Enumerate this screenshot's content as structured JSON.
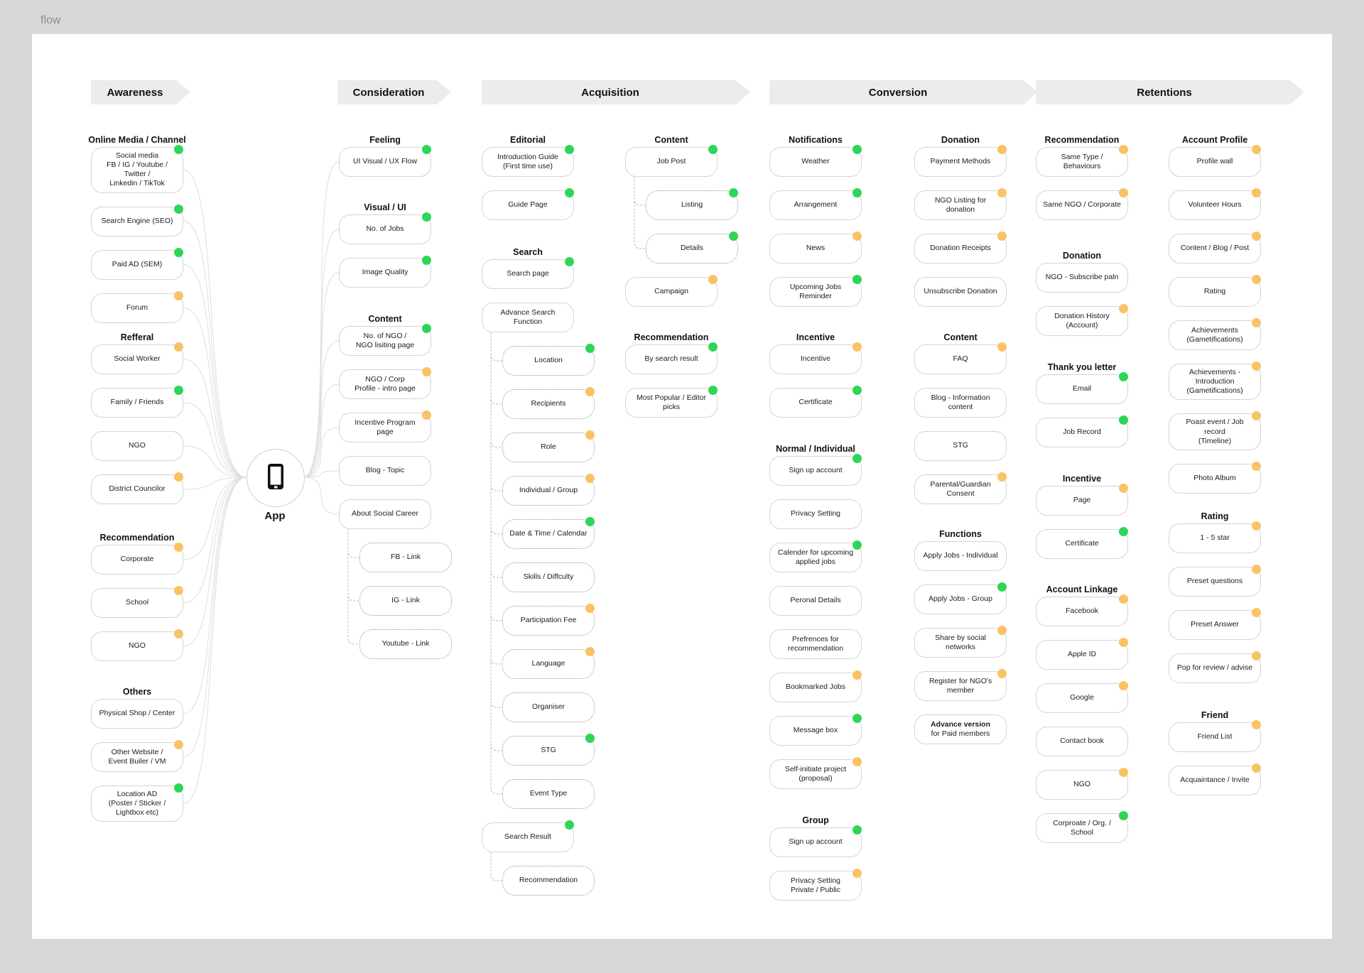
{
  "page_label": "flow",
  "app_node": {
    "label": "App"
  },
  "status_colors": {
    "green": "#2fd656",
    "orange": "#fac262"
  },
  "stages": [
    {
      "id": "awareness",
      "header": "Awareness",
      "columns": [
        {
          "id": "aw",
          "groups": [
            {
              "title": "Online Media / Channel",
              "items": [
                {
                  "label": "Social media\nFB / IG / Youtube / Twitter /\nLinkedin / TikTok",
                  "dot": "green"
                },
                {
                  "label": "Search Engine (SEO)",
                  "dot": "green"
                },
                {
                  "label": "Paid AD (SEM)",
                  "dot": "green"
                },
                {
                  "label": "Forum",
                  "dot": "orange"
                }
              ]
            },
            {
              "title": "Refferal",
              "items": [
                {
                  "label": "Social Worker",
                  "dot": "orange"
                },
                {
                  "label": "Family / Friends",
                  "dot": "green"
                },
                {
                  "label": "NGO",
                  "dot": null
                },
                {
                  "label": "District Councilor",
                  "dot": "orange"
                }
              ]
            },
            {
              "title": "Recommendation",
              "items": [
                {
                  "label": "Corporate",
                  "dot": "orange"
                },
                {
                  "label": "School",
                  "dot": "orange"
                },
                {
                  "label": "NGO",
                  "dot": "orange"
                }
              ]
            },
            {
              "title": "Others",
              "items": [
                {
                  "label": "Physical Shop / Center",
                  "dot": null
                },
                {
                  "label": "Other Website /\nEvent Builer / VM",
                  "dot": "orange"
                },
                {
                  "label": "Location AD\n(Poster / Sticker /\nLightbox etc)",
                  "dot": "green"
                }
              ]
            }
          ]
        }
      ]
    },
    {
      "id": "consideration",
      "header": "Consideration",
      "columns": [
        {
          "id": "cons",
          "groups": [
            {
              "title": "Feeling",
              "items": [
                {
                  "label": "UI Visual / UX Flow",
                  "dot": "green"
                }
              ]
            },
            {
              "title": "Visual / UI",
              "items": [
                {
                  "label": "No. of Jobs",
                  "dot": "green"
                },
                {
                  "label": "Image Quality",
                  "dot": "green"
                }
              ]
            },
            {
              "title": "Content",
              "items": [
                {
                  "label": "No. of NGO /\nNGO lisiting page",
                  "dot": "green"
                },
                {
                  "label": "NGO / Corp\nProfile - intro page",
                  "dot": "orange"
                },
                {
                  "label": "Incentive Program page",
                  "dot": "orange"
                },
                {
                  "label": "Blog - Topic",
                  "dot": null
                },
                {
                  "label": "About Social Career",
                  "dot": null
                },
                {
                  "label": "FB - Link",
                  "dot": null,
                  "dashed": true,
                  "indent": true
                },
                {
                  "label": "IG - Link",
                  "dot": null,
                  "dashed": true,
                  "indent": true
                },
                {
                  "label": "Youtube - Link",
                  "dot": null,
                  "dashed": true,
                  "indent": true
                }
              ]
            }
          ]
        }
      ]
    },
    {
      "id": "acquisition",
      "header": "Acquisition",
      "columns": [
        {
          "id": "acqL",
          "groups": [
            {
              "title": "Editorial",
              "items": [
                {
                  "label": "Introduction Guide\n(First time use)",
                  "dot": "green"
                },
                {
                  "label": "Guide Page",
                  "dot": "green"
                }
              ]
            },
            {
              "title": "Search",
              "items": [
                {
                  "label": "Search page",
                  "dot": "green"
                },
                {
                  "label": "Advance Search Function",
                  "dot": null
                },
                {
                  "label": "Location",
                  "dot": "green",
                  "dashed": true,
                  "indent": true
                },
                {
                  "label": "Recipients",
                  "dot": "orange",
                  "dashed": true,
                  "indent": true
                },
                {
                  "label": "Role",
                  "dot": "orange",
                  "dashed": true,
                  "indent": true
                },
                {
                  "label": "Individual / Group",
                  "dot": "orange",
                  "dashed": true,
                  "indent": true
                },
                {
                  "label": "Date & Time / Calendar",
                  "dot": "green",
                  "dashed": true,
                  "indent": true
                },
                {
                  "label": "Skills / Diffculty",
                  "dot": null,
                  "dashed": true,
                  "indent": true
                },
                {
                  "label": "Participation Fee",
                  "dot": "orange",
                  "dashed": true,
                  "indent": true
                },
                {
                  "label": "Language",
                  "dot": "orange",
                  "dashed": true,
                  "indent": true
                },
                {
                  "label": "Organiser",
                  "dot": null,
                  "dashed": true,
                  "indent": true
                },
                {
                  "label": "STG",
                  "dot": "green",
                  "dashed": true,
                  "indent": true
                },
                {
                  "label": "Event Type",
                  "dot": null,
                  "dashed": true,
                  "indent": true
                },
                {
                  "label": "Search Result",
                  "dot": "green"
                },
                {
                  "label": "Recommendation",
                  "dot": null,
                  "dashed": true,
                  "indent": true
                }
              ]
            }
          ]
        },
        {
          "id": "acqR",
          "groups": [
            {
              "title": "Content",
              "items": [
                {
                  "label": "Job Post",
                  "dot": "green"
                },
                {
                  "label": "Listing",
                  "dot": "green",
                  "dashed": true,
                  "indent": true
                },
                {
                  "label": "Details",
                  "dot": "green",
                  "dashed": true,
                  "indent": true
                },
                {
                  "label": "Campaign",
                  "dot": "orange"
                }
              ]
            },
            {
              "title": "Recommendation",
              "items": [
                {
                  "label": "By search result",
                  "dot": "green"
                },
                {
                  "label": "Most Popular / Editor picks",
                  "dot": "green"
                }
              ]
            }
          ]
        }
      ]
    },
    {
      "id": "conversion",
      "header": "Conversion",
      "columns": [
        {
          "id": "convL",
          "groups": [
            {
              "title": "Notifications",
              "items": [
                {
                  "label": "Weather",
                  "dot": "green"
                },
                {
                  "label": "Arrangement",
                  "dot": "green"
                },
                {
                  "label": "News",
                  "dot": "orange"
                },
                {
                  "label": "Upcoming Jobs  Reminder",
                  "dot": "green"
                }
              ]
            },
            {
              "title": "Incentive",
              "items": [
                {
                  "label": "Incentive",
                  "dot": "orange"
                },
                {
                  "label": "Certificate",
                  "dot": "green"
                }
              ]
            },
            {
              "title": "Normal / Individual",
              "items": [
                {
                  "label": "Sign up account",
                  "dot": "green"
                },
                {
                  "label": "Privacy Setting",
                  "dot": null
                },
                {
                  "label": "Calender for upcoming\napplied jobs",
                  "dot": "green"
                },
                {
                  "label": "Peronal Details",
                  "dot": null
                },
                {
                  "label": "Prefrences for\nrecommendation",
                  "dot": null
                },
                {
                  "label": "Bookmarked Jobs",
                  "dot": "orange"
                },
                {
                  "label": "Message box",
                  "dot": "green"
                },
                {
                  "label": "Self-initiate project\n(proposal)",
                  "dot": "orange"
                }
              ]
            },
            {
              "title": "Group",
              "items": [
                {
                  "label": "Sign up account",
                  "dot": "green"
                },
                {
                  "label": "Privacy Setting\nPrivate / Public",
                  "dot": "orange"
                }
              ]
            }
          ]
        },
        {
          "id": "convR",
          "groups": [
            {
              "title": "Donation",
              "items": [
                {
                  "label": "Payment Methods",
                  "dot": "orange"
                },
                {
                  "label": "NGO Listing for donation",
                  "dot": "orange"
                },
                {
                  "label": "Donation Receipts",
                  "dot": "orange"
                },
                {
                  "label": "Unsubscribe Donation",
                  "dot": null
                }
              ]
            },
            {
              "title": "Content",
              "items": [
                {
                  "label": "FAQ",
                  "dot": "orange"
                },
                {
                  "label": "Blog - Information content",
                  "dot": null
                },
                {
                  "label": "STG",
                  "dot": null
                },
                {
                  "label": "Parental/Guardian Consent",
                  "dot": "orange"
                }
              ]
            },
            {
              "title": "Functions",
              "items": [
                {
                  "label": "Apply Jobs - Individual",
                  "dot": null
                },
                {
                  "label": "Apply Jobs - Group",
                  "dot": "green"
                },
                {
                  "label": "Share by social networks",
                  "dot": "orange"
                },
                {
                  "label": "Register for NGO's member",
                  "dot": "orange"
                },
                {
                  "label_bold": "Advance version",
                  "label": "for Paid members",
                  "dot": null
                }
              ]
            }
          ]
        }
      ]
    },
    {
      "id": "retentions",
      "header": "Retentions",
      "columns": [
        {
          "id": "retL",
          "groups": [
            {
              "title": "Recommendation",
              "items": [
                {
                  "label": "Same Type / Behaviours",
                  "dot": "orange"
                },
                {
                  "label": "Same NGO / Corporate",
                  "dot": "orange"
                }
              ]
            },
            {
              "title": "Donation",
              "items": [
                {
                  "label": "NGO - Subscribe paln",
                  "dot": null
                },
                {
                  "label": "Donation History (Account)",
                  "dot": "orange"
                }
              ]
            },
            {
              "title": "Thank  you letter",
              "items": [
                {
                  "label": "Email",
                  "dot": "green"
                },
                {
                  "label": "Job Record",
                  "dot": "green"
                }
              ]
            },
            {
              "title": "Incentive",
              "items": [
                {
                  "label": "Page",
                  "dot": "orange"
                },
                {
                  "label": "Certificate",
                  "dot": "green"
                }
              ]
            },
            {
              "title": "Account Linkage",
              "items": [
                {
                  "label": "Facebook",
                  "dot": "orange"
                },
                {
                  "label": "Apple ID",
                  "dot": "orange"
                },
                {
                  "label": "Google",
                  "dot": "orange"
                },
                {
                  "label": "Contact book",
                  "dot": null
                },
                {
                  "label": "NGO",
                  "dot": "orange"
                },
                {
                  "label": "Corproate / Org. / School",
                  "dot": "green"
                }
              ]
            }
          ]
        },
        {
          "id": "retR",
          "groups": [
            {
              "title": "Account Profile",
              "items": [
                {
                  "label": "Profile wall",
                  "dot": "orange"
                },
                {
                  "label": "Volunteer Hours",
                  "dot": "orange"
                },
                {
                  "label": "Content / Blog / Post",
                  "dot": "orange"
                },
                {
                  "label": "Rating",
                  "dot": "orange"
                },
                {
                  "label": "Achievements\n(Gametifications)",
                  "dot": "orange"
                },
                {
                  "label": "Achievements - Introduction\n(Gametifications)",
                  "dot": "orange"
                },
                {
                  "label": "Poast event / Job record\n(Timeline)",
                  "dot": "orange"
                },
                {
                  "label": "Photo Album",
                  "dot": "orange"
                }
              ]
            },
            {
              "title": "Rating",
              "items": [
                {
                  "label": "1 - 5 star",
                  "dot": "orange"
                },
                {
                  "label": "Preset questions",
                  "dot": "orange"
                },
                {
                  "label": "Preset Answer",
                  "dot": "orange"
                },
                {
                  "label": "Pop for review / advise",
                  "dot": "orange"
                }
              ]
            },
            {
              "title": "Friend",
              "items": [
                {
                  "label": "Friend List",
                  "dot": "orange"
                },
                {
                  "label": "Acquaintance / Invite",
                  "dot": "orange"
                }
              ]
            }
          ]
        }
      ]
    }
  ]
}
